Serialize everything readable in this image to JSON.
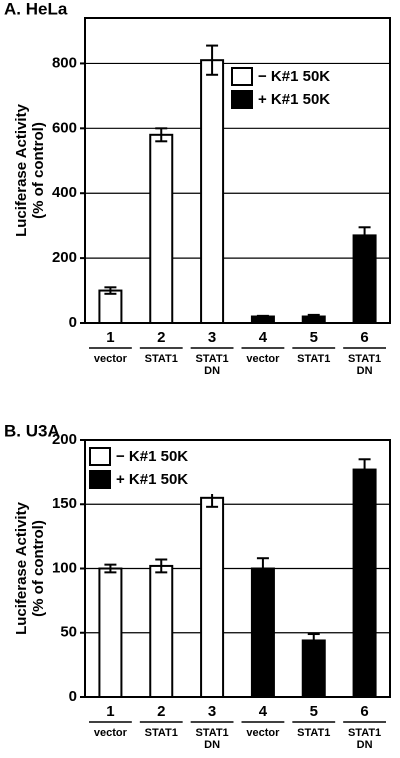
{
  "chart_data": [
    {
      "type": "bar",
      "title": "A. HeLa",
      "ylabel": [
        "Luciferase Activity",
        "(% of control)"
      ],
      "categories": [
        "1",
        "2",
        "3",
        "4",
        "5",
        "6"
      ],
      "sublabels": [
        [
          "vector"
        ],
        [
          "STAT1"
        ],
        [
          "STAT1",
          "DN"
        ],
        [
          "vector"
        ],
        [
          "STAT1"
        ],
        [
          "STAT1",
          "DN"
        ]
      ],
      "series": [
        {
          "name": "− K#1 50K",
          "color": "#ffffff",
          "values": [
            100,
            580,
            810,
            null,
            null,
            null
          ],
          "errors": [
            10,
            20,
            45,
            null,
            null,
            null
          ]
        },
        {
          "name": "+ K#1 50K",
          "color": "#000000",
          "values": [
            null,
            null,
            null,
            20,
            20,
            270
          ],
          "errors": [
            null,
            null,
            null,
            2,
            5,
            25
          ]
        }
      ],
      "ylim": [
        0,
        940
      ],
      "yticks": [
        0,
        200,
        400,
        600,
        800
      ],
      "grid": true,
      "legend": "upper right"
    },
    {
      "type": "bar",
      "title": "B. U3A",
      "ylabel": [
        "Luciferase Activity",
        "(% of control)"
      ],
      "categories": [
        "1",
        "2",
        "3",
        "4",
        "5",
        "6"
      ],
      "sublabels": [
        [
          "vector"
        ],
        [
          "STAT1"
        ],
        [
          "STAT1",
          "DN"
        ],
        [
          "vector"
        ],
        [
          "STAT1"
        ],
        [
          "STAT1",
          "DN"
        ]
      ],
      "series": [
        {
          "name": "− K#1 50K",
          "color": "#ffffff",
          "values": [
            100,
            102,
            155,
            null,
            null,
            null
          ],
          "errors": [
            3,
            5,
            7,
            null,
            null,
            null
          ]
        },
        {
          "name": "+ K#1 50K",
          "color": "#000000",
          "values": [
            null,
            null,
            null,
            100,
            44,
            177
          ],
          "errors": [
            null,
            null,
            null,
            8,
            5,
            8
          ]
        }
      ],
      "ylim": [
        0,
        200
      ],
      "yticks": [
        0,
        50,
        100,
        150,
        200
      ],
      "grid": true,
      "legend": "upper left"
    }
  ]
}
